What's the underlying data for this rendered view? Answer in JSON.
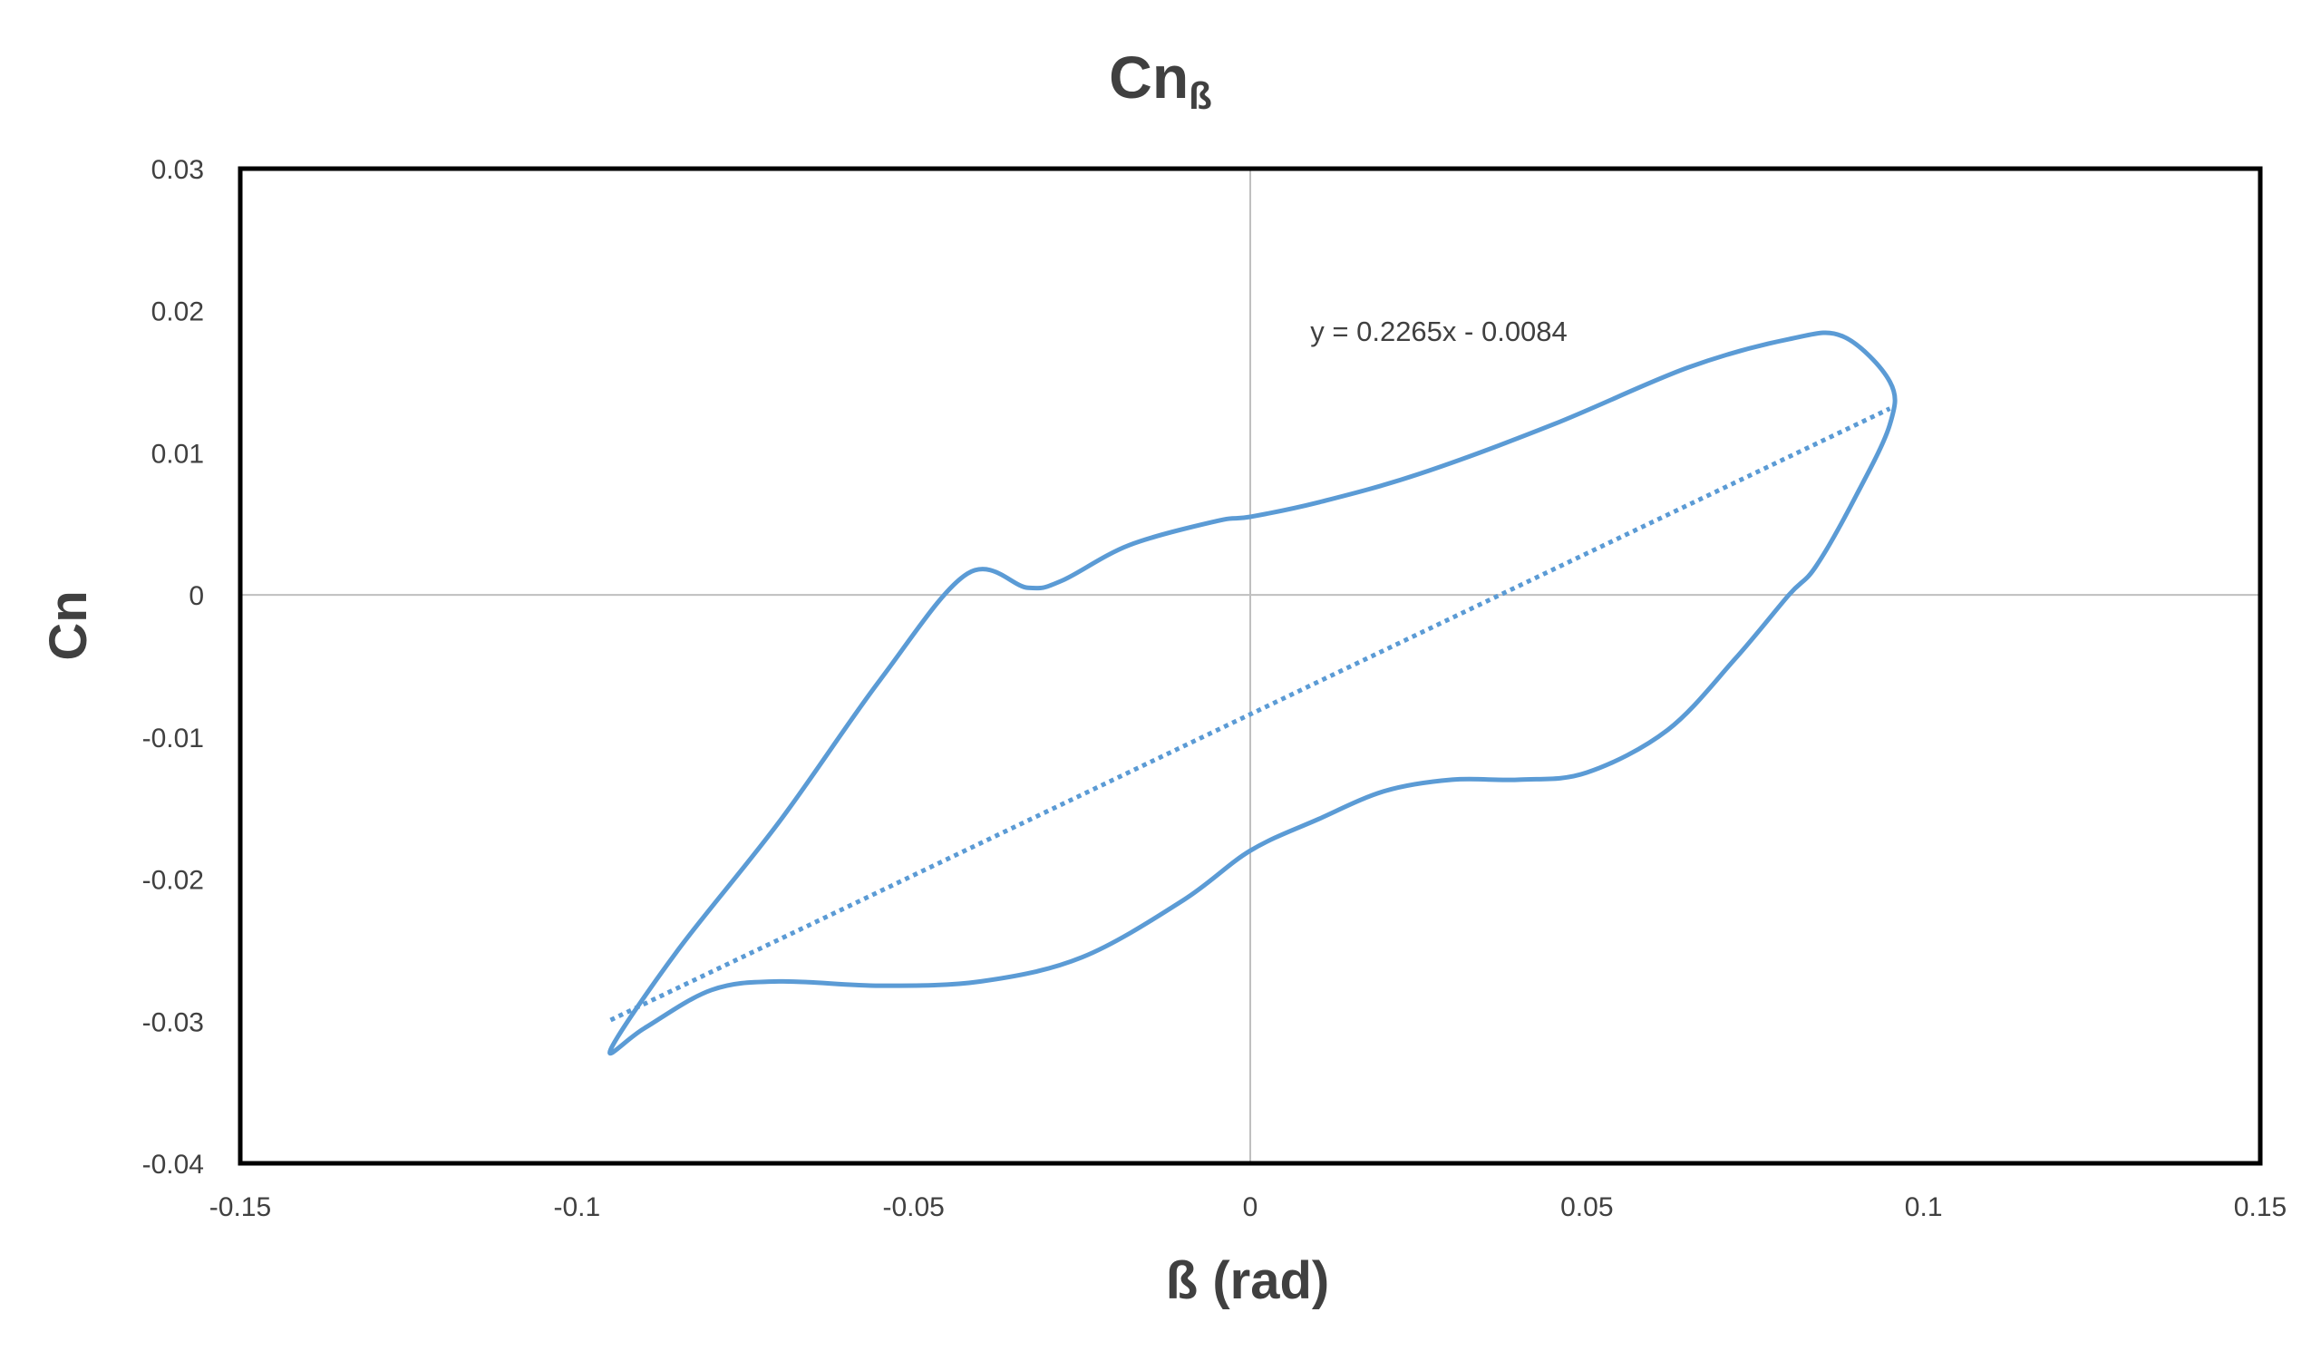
{
  "chart_data": {
    "type": "line",
    "title": "Cn",
    "title_subscript": "ß",
    "xlabel": "ß (rad)",
    "ylabel": "Cn",
    "xlim": [
      -0.15,
      0.15
    ],
    "ylim": [
      -0.04,
      0.03
    ],
    "x_ticks": [
      -0.15,
      -0.1,
      -0.05,
      0,
      0.05,
      0.1,
      0.15
    ],
    "y_ticks": [
      -0.04,
      -0.03,
      -0.02,
      -0.01,
      0,
      0.01,
      0.02,
      0.03
    ],
    "x_tick_labels": [
      "-0.15",
      "-0.1",
      "-0.05",
      "0",
      "0.05",
      "0.1",
      "0.15"
    ],
    "y_tick_labels": [
      "-0.04",
      "-0.03",
      "-0.02",
      "-0.01",
      "0",
      "0.01",
      "0.02",
      "0.03"
    ],
    "grid": false,
    "zero_lines": true,
    "legend": "none",
    "series": [
      {
        "style": "solid",
        "color": "#5B9BD5",
        "closed": true,
        "x": [
          -0.095,
          -0.085,
          -0.07,
          -0.055,
          -0.042,
          -0.033,
          -0.028,
          -0.018,
          -0.005,
          0.0,
          0.01,
          0.025,
          0.045,
          0.065,
          0.08,
          0.088,
          0.095,
          0.095,
          0.09,
          0.084,
          0.08,
          0.072,
          0.062,
          0.05,
          0.04,
          0.03,
          0.02,
          0.01,
          0.0,
          -0.01,
          -0.025,
          -0.04,
          -0.055,
          -0.07,
          -0.08,
          -0.09,
          -0.095
        ],
        "y": [
          -0.032,
          -0.025,
          -0.016,
          -0.006,
          0.0015,
          0.0005,
          0.001,
          0.0035,
          0.0052,
          0.0055,
          0.0065,
          0.0085,
          0.012,
          0.016,
          0.018,
          0.0182,
          0.015,
          0.012,
          0.007,
          0.002,
          0.0,
          -0.0045,
          -0.0095,
          -0.0125,
          -0.013,
          -0.013,
          -0.0138,
          -0.0158,
          -0.018,
          -0.0215,
          -0.0255,
          -0.0272,
          -0.0275,
          -0.0272,
          -0.0278,
          -0.0305,
          -0.032
        ]
      },
      {
        "style": "dotted",
        "color": "#5B9BD5",
        "trendline": true,
        "slope": 0.2265,
        "intercept": -0.0084,
        "x": [
          -0.095,
          0.095
        ]
      }
    ],
    "annotations": [
      {
        "text": "y = 0.2265x - 0.0084",
        "x": 0.01,
        "y": 0.0185
      }
    ]
  }
}
